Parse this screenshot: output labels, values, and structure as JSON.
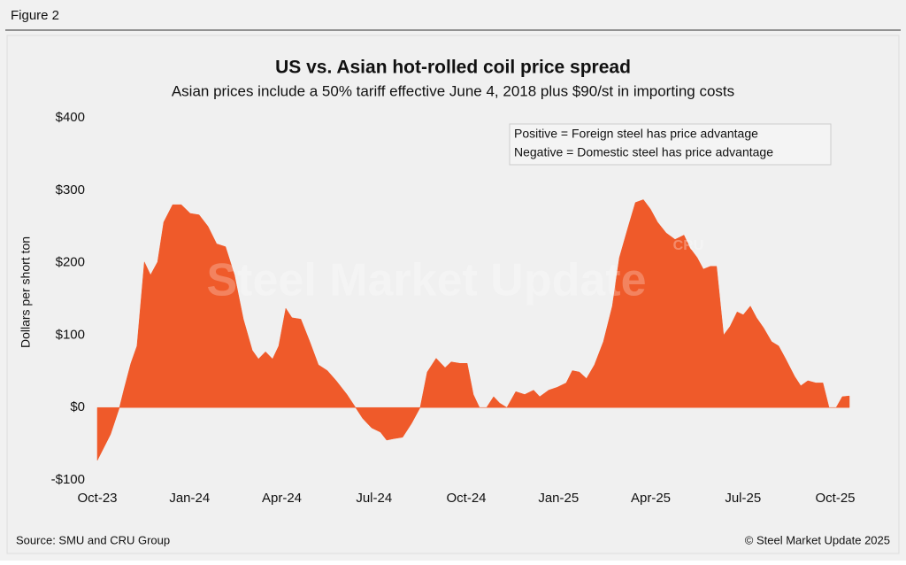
{
  "figure_label": "Figure 2",
  "chart_data": {
    "type": "area",
    "title": "US vs. Asian hot-rolled coil price spread",
    "subtitle": "Asian prices include a 50% tariff effective June 4, 2018 plus $90/st in importing costs",
    "ylabel": "Dollars per short ton",
    "annotations": [
      "Positive = Foreign steel has price advantage",
      "Negative = Domestic steel has price advantage"
    ],
    "watermark": "Steel Market Update",
    "watermark_logo": "CRU",
    "source": "Source: SMU and CRU Group",
    "copyright": "© Steel Market Update 2025",
    "color": "#ef5a2a",
    "xlim": [
      0,
      25
    ],
    "xticks": [
      {
        "value": 0,
        "label": "Oct-23"
      },
      {
        "value": 3,
        "label": "Jan-24"
      },
      {
        "value": 6,
        "label": "Apr-24"
      },
      {
        "value": 9,
        "label": "Jul-24"
      },
      {
        "value": 12,
        "label": "Oct-24"
      },
      {
        "value": 15,
        "label": "Jan-25"
      },
      {
        "value": 18,
        "label": "Apr-25"
      },
      {
        "value": 21,
        "label": "Jul-25"
      },
      {
        "value": 24,
        "label": "Oct-25"
      }
    ],
    "ylim": [
      -100,
      400
    ],
    "yticks": [
      {
        "value": -100,
        "label": "-$100"
      },
      {
        "value": 0,
        "label": "$0"
      },
      {
        "value": 100,
        "label": "$100"
      },
      {
        "value": 200,
        "label": "$200"
      },
      {
        "value": 300,
        "label": "$300"
      },
      {
        "value": 400,
        "label": "$400"
      }
    ],
    "x": [
      0,
      0.43,
      0.72,
      0.86,
      1.09,
      1.29,
      1.53,
      1.73,
      1.96,
      2.16,
      2.45,
      2.73,
      3.02,
      3.31,
      3.6,
      3.88,
      4.17,
      4.46,
      4.75,
      5.04,
      5.24,
      5.47,
      5.7,
      5.9,
      6.13,
      6.33,
      6.62,
      6.91,
      7.19,
      7.48,
      7.77,
      8.12,
      8.4,
      8.63,
      8.92,
      9.21,
      9.41,
      9.64,
      9.93,
      10.22,
      10.5,
      10.73,
      11.02,
      11.31,
      11.51,
      11.8,
      12.03,
      12.23,
      12.43,
      12.66,
      12.89,
      13.09,
      13.32,
      13.61,
      13.9,
      14.19,
      14.39,
      14.68,
      14.96,
      15.25,
      15.45,
      15.68,
      15.91,
      16.17,
      16.46,
      16.75,
      16.98,
      17.27,
      17.5,
      17.76,
      17.99,
      18.22,
      18.5,
      18.79,
      19.08,
      19.28,
      19.51,
      19.71,
      19.94,
      20.14,
      20.37,
      20.58,
      20.81,
      21.01,
      21.24,
      21.44,
      21.67,
      21.93,
      22.16,
      22.39,
      22.68,
      22.88,
      23.11,
      23.37,
      23.6,
      23.8,
      24.03,
      24.23,
      24.46
    ],
    "values": [
      -73,
      -37,
      0,
      24,
      61,
      85,
      201,
      183,
      201,
      256,
      280,
      280,
      268,
      266,
      250,
      226,
      222,
      183,
      122,
      79,
      67,
      77,
      67,
      85,
      137,
      124,
      122,
      91,
      59,
      51,
      37,
      18,
      0,
      -15,
      -28,
      -34,
      -45,
      -43,
      -41,
      -22,
      0,
      49,
      68,
      55,
      63,
      61,
      61,
      18,
      0,
      0,
      15,
      6,
      0,
      22,
      18,
      24,
      15,
      24,
      28,
      34,
      51,
      49,
      40,
      59,
      91,
      140,
      207,
      250,
      283,
      287,
      274,
      256,
      241,
      232,
      238,
      220,
      207,
      191,
      195,
      195,
      100,
      112,
      132,
      128,
      140,
      124,
      110,
      91,
      85,
      67,
      43,
      30,
      37,
      34,
      34,
      0,
      0,
      15,
      16
    ]
  }
}
